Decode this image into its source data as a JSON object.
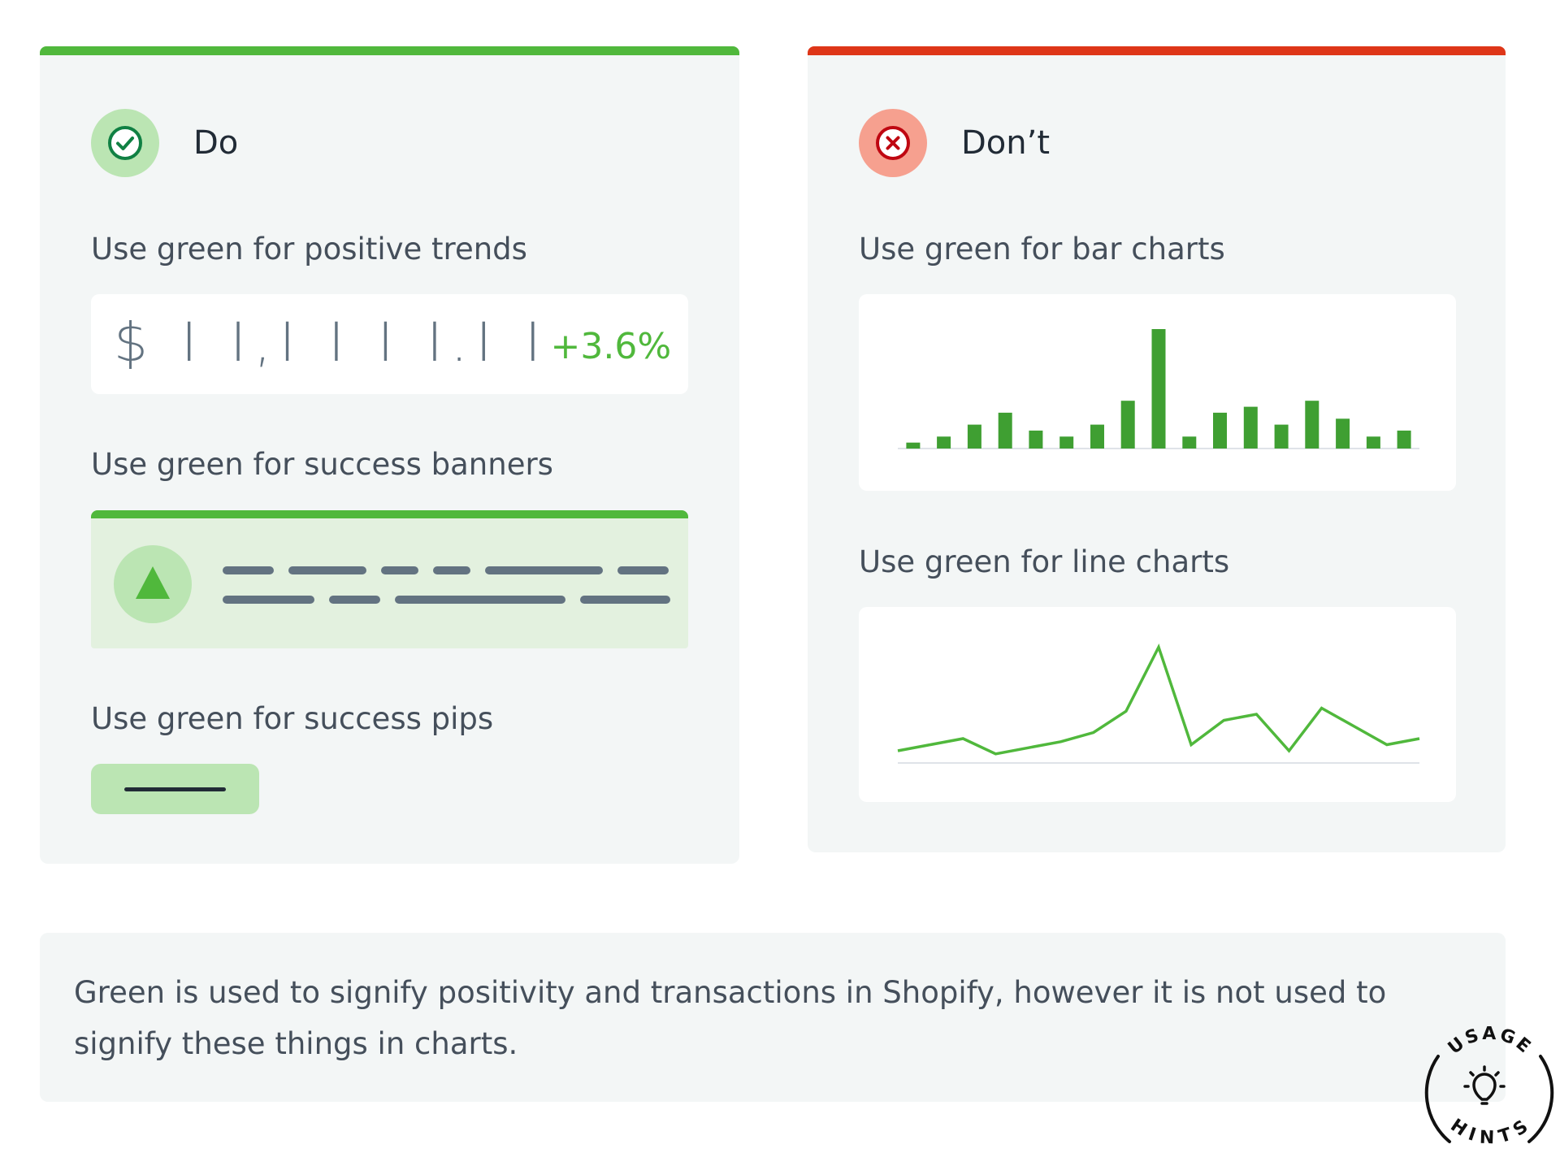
{
  "do_card": {
    "accent_color": "#50b83c",
    "header": "Do",
    "icon": "check-circle-icon",
    "positive_trend": {
      "label": "Use green for positive trends",
      "value": "$ I I,I I I I.I I",
      "change": "+3.6%"
    },
    "success_banner": {
      "label": "Use green for success banners",
      "icon": "triangle-up-icon"
    },
    "success_pip": {
      "label": "Use green for success pips"
    }
  },
  "dont_card": {
    "accent_color": "#de3618",
    "header": "Don’t",
    "icon": "x-circle-icon",
    "bar_chart_section": {
      "label": "Use green for bar charts"
    },
    "line_chart_section": {
      "label": "Use green for line charts"
    }
  },
  "note": {
    "text": "Green is used to signify positivity and transactions in Shopify, however it is not used to signify these things in charts."
  },
  "badge": {
    "top_text": "USAGE",
    "bottom_text": "HINTS",
    "icon": "lightbulb-icon"
  },
  "chart_data": [
    {
      "type": "bar",
      "title": "",
      "xlabel": "",
      "ylabel": "",
      "color": "#3f9f32",
      "values": [
        1,
        2,
        4,
        6,
        3,
        2,
        4,
        8,
        20,
        2,
        6,
        7,
        4,
        8,
        5,
        2,
        3
      ],
      "ylim": [
        0,
        20
      ]
    },
    {
      "type": "line",
      "title": "",
      "xlabel": "",
      "ylabel": "",
      "color": "#50b83c",
      "values": [
        2,
        3,
        4,
        1.5,
        2.5,
        3.5,
        5,
        8.5,
        19,
        3,
        7,
        8,
        2,
        9,
        6,
        3,
        4
      ],
      "ylim": [
        0,
        20
      ]
    }
  ]
}
